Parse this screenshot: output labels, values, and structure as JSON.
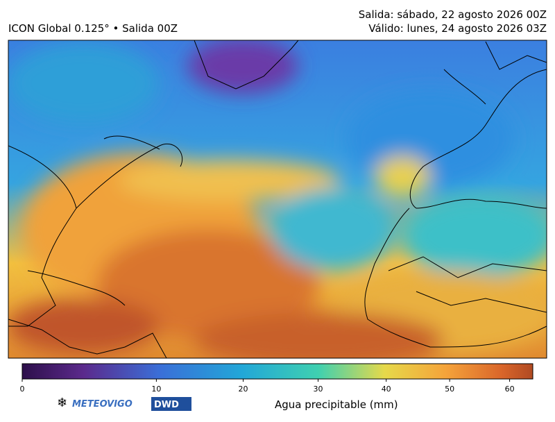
{
  "header": {
    "model": "ICON Global 0.125° • Salida 00Z",
    "run": "Salida: sábado, 22 agosto 2026 00Z",
    "valid": "Válido: lunes, 24 agosto 2026 03Z"
  },
  "colorbar": {
    "label": "Agua precipitable (mm)",
    "lim": [
      0,
      64
    ],
    "ticks": [
      0,
      10,
      20,
      30,
      40,
      50,
      60
    ]
  },
  "logos": {
    "meteovigo": "METEOVIGO",
    "dwd": "DWD"
  }
}
